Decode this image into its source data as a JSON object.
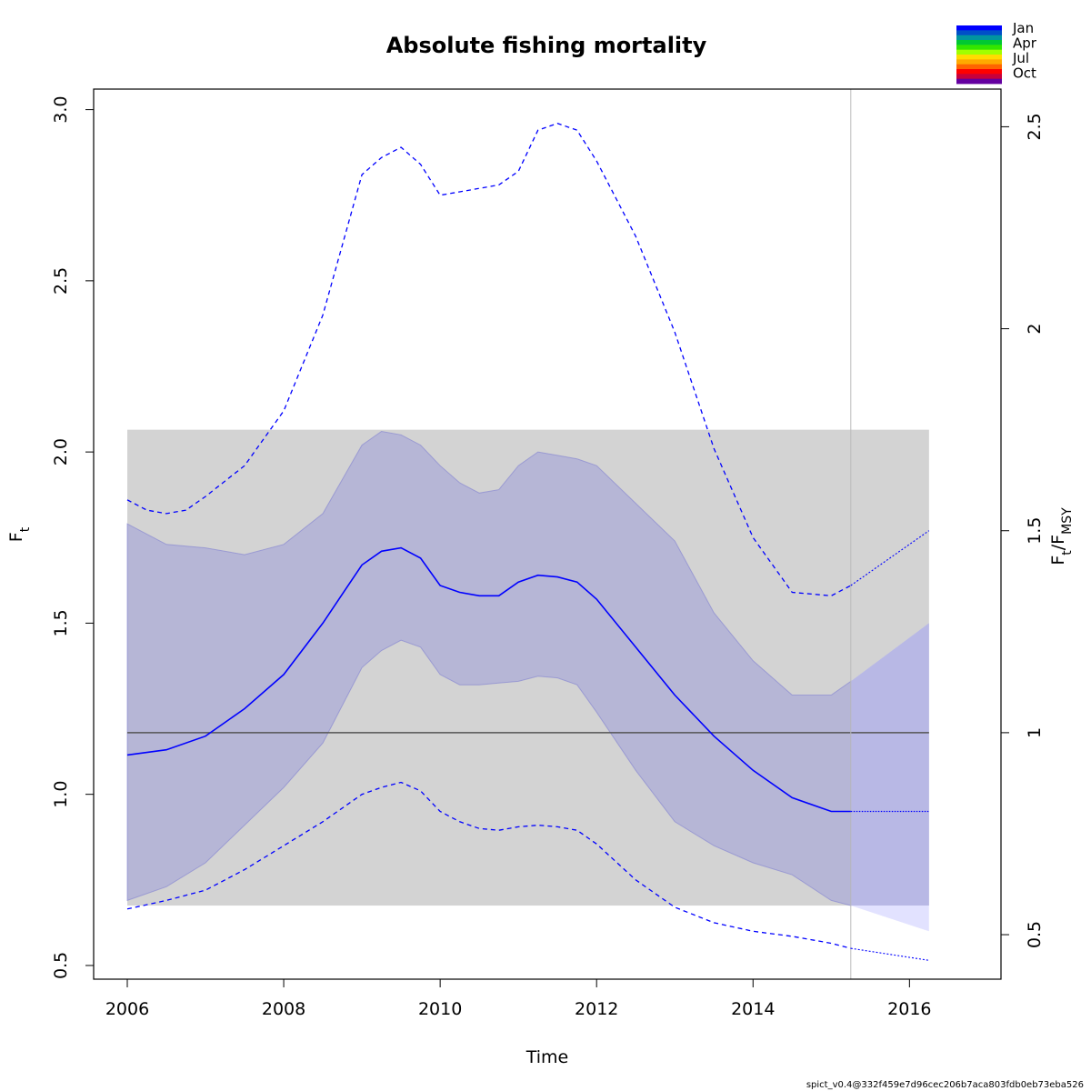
{
  "chart_data": {
    "type": "line",
    "title": "Absolute fishing mortality",
    "xlabel": "Time",
    "ylabel_main": "F",
    "ylabel_sub": "t",
    "ylabel_right_main": "F",
    "ylabel_right_sub1": "t",
    "ylabel_right_sep": "/F",
    "ylabel_right_sub2": "MSY",
    "xlim": [
      2005.57,
      2017.17
    ],
    "ylim": [
      0.46,
      3.06
    ],
    "x_ticks": [
      2006,
      2008,
      2010,
      2012,
      2014,
      2016
    ],
    "x_tick_labels": [
      "2006",
      "2008",
      "2010",
      "2012",
      "2014",
      "2016"
    ],
    "y_ticks": [
      0.5,
      1.0,
      1.5,
      2.0,
      2.5,
      3.0
    ],
    "y_tick_labels": [
      "0.5",
      "1.0",
      "1.5",
      "2.0",
      "2.5",
      "3.0"
    ],
    "right_axis_fmsy": 1.18,
    "right_ticks": [
      0.5,
      1,
      1.5,
      2,
      2.5
    ],
    "right_tick_labels": [
      "0.5",
      "1",
      "1.5",
      "2",
      "2.5"
    ],
    "fmsy_band": {
      "x": [
        2006,
        2016.25
      ],
      "y": [
        0.675,
        2.065
      ]
    },
    "fmsy_line": 1.18,
    "last_obs_time": 2015.25,
    "estimate": {
      "x": [
        2006,
        2006.5,
        2007,
        2007.5,
        2008,
        2008.5,
        2009,
        2009.25,
        2009.5,
        2009.75,
        2010,
        2010.25,
        2010.5,
        2010.75,
        2011,
        2011.25,
        2011.5,
        2011.75,
        2012,
        2012.5,
        2013,
        2013.5,
        2014,
        2014.5,
        2015,
        2015.25
      ],
      "y": [
        1.115,
        1.13,
        1.17,
        1.25,
        1.35,
        1.5,
        1.67,
        1.71,
        1.72,
        1.69,
        1.61,
        1.59,
        1.58,
        1.58,
        1.62,
        1.64,
        1.635,
        1.62,
        1.57,
        1.43,
        1.29,
        1.17,
        1.07,
        0.99,
        0.95,
        0.95
      ]
    },
    "forecast": {
      "x": [
        2015.25,
        2016.25
      ],
      "y": [
        0.95,
        0.95
      ]
    },
    "ci": {
      "x": [
        2006,
        2006.5,
        2007,
        2007.5,
        2008,
        2008.5,
        2009,
        2009.25,
        2009.5,
        2009.75,
        2010,
        2010.25,
        2010.5,
        2010.75,
        2011,
        2011.25,
        2011.5,
        2011.75,
        2012,
        2012.5,
        2013,
        2013.5,
        2014,
        2014.5,
        2015,
        2015.25,
        2016.25
      ],
      "upper": [
        1.79,
        1.73,
        1.72,
        1.7,
        1.73,
        1.82,
        2.02,
        2.06,
        2.05,
        2.02,
        1.96,
        1.91,
        1.88,
        1.89,
        1.96,
        2.0,
        1.99,
        1.98,
        1.96,
        1.85,
        1.74,
        1.53,
        1.39,
        1.29,
        1.29,
        1.33,
        1.5
      ],
      "lower": [
        0.69,
        0.73,
        0.8,
        0.91,
        1.02,
        1.15,
        1.37,
        1.42,
        1.45,
        1.43,
        1.35,
        1.32,
        1.32,
        1.325,
        1.33,
        1.345,
        1.34,
        1.32,
        1.24,
        1.07,
        0.92,
        0.85,
        0.8,
        0.765,
        0.69,
        0.675,
        0.6
      ]
    },
    "upper_dashed": {
      "x": [
        2006,
        2006.25,
        2006.5,
        2006.75,
        2007,
        2007.5,
        2008,
        2008.5,
        2009,
        2009.25,
        2009.5,
        2009.75,
        2010,
        2010.25,
        2010.5,
        2010.75,
        2011,
        2011.25,
        2011.5,
        2011.75,
        2012,
        2012.5,
        2013,
        2013.5,
        2014,
        2014.5,
        2015,
        2015.25
      ],
      "y": [
        1.86,
        1.83,
        1.82,
        1.83,
        1.87,
        1.96,
        2.12,
        2.4,
        2.81,
        2.86,
        2.89,
        2.84,
        2.75,
        2.76,
        2.77,
        2.78,
        2.82,
        2.94,
        2.96,
        2.94,
        2.85,
        2.63,
        2.35,
        2.01,
        1.75,
        1.59,
        1.58,
        1.61
      ]
    },
    "upper_forecast": {
      "x": [
        2015.25,
        2016.25
      ],
      "y": [
        1.61,
        1.77
      ]
    },
    "lower_dashed": {
      "x": [
        2006,
        2006.5,
        2007,
        2007.5,
        2008,
        2008.5,
        2009,
        2009.25,
        2009.5,
        2009.75,
        2010,
        2010.25,
        2010.5,
        2010.75,
        2011,
        2011.25,
        2011.5,
        2011.75,
        2012,
        2012.5,
        2013,
        2013.5,
        2014,
        2014.5,
        2015,
        2015.25
      ],
      "y": [
        0.665,
        0.69,
        0.72,
        0.78,
        0.85,
        0.92,
        1.0,
        1.02,
        1.035,
        1.01,
        0.95,
        0.92,
        0.9,
        0.895,
        0.905,
        0.91,
        0.905,
        0.895,
        0.855,
        0.75,
        0.67,
        0.625,
        0.6,
        0.585,
        0.565,
        0.55
      ]
    },
    "lower_forecast": {
      "x": [
        2015.25,
        2016.25
      ],
      "y": [
        0.55,
        0.515
      ]
    },
    "colors": {
      "band": "#d3d3d3",
      "ci_fill": "#9e9ed8",
      "ci_fill_opacity": 0.55,
      "ci_forecast": "#d8d8ff",
      "line": "#0000ff",
      "fmsy": "#555555",
      "vline": "#bbbbbb"
    },
    "legend": {
      "labels": [
        "Jan",
        "Apr",
        "Jul",
        "Oct"
      ],
      "colors": [
        "#0000ff",
        "#0050c8",
        "#0096a0",
        "#00c832",
        "#32e600",
        "#a0ff00",
        "#ffdc00",
        "#ffaa00",
        "#ff6400",
        "#ff0000",
        "#c8003c",
        "#6400a0"
      ]
    }
  },
  "footer_text": "spict_v0.4@332f459e7d96cec206b7aca803fdb0eb73eba526"
}
